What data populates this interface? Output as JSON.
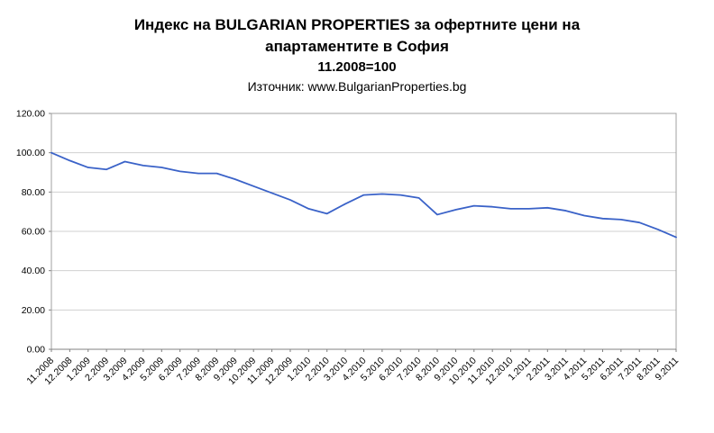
{
  "chart_data": {
    "type": "line",
    "title_line1": "Индекс на BULGARIAN PROPERTIES за офертните цени на",
    "title_line2": "апартаментите в София",
    "subtitle": "11.2008=100",
    "source": "Източник: www.BulgarianProperties.bg",
    "categories": [
      "11.2008",
      "12.2008",
      "1.2009",
      "2.2009",
      "3.2009",
      "4.2009",
      "5.2009",
      "6.2009",
      "7.2009",
      "8.2009",
      "9.2009",
      "10.2009",
      "11.2009",
      "12.2009",
      "1.2010",
      "2.2010",
      "3.2010",
      "4.2010",
      "5.2010",
      "6.2010",
      "7.2010",
      "8.2010",
      "9.2010",
      "10.2010",
      "11.2010",
      "12.2010",
      "1.2011",
      "2.2011",
      "3.2011",
      "4.2011",
      "5.2011",
      "6.2011",
      "7.2011",
      "8.2011",
      "9.2011"
    ],
    "values": [
      100,
      96,
      92.5,
      91.5,
      95.5,
      93.5,
      92.5,
      90.5,
      89.5,
      89.5,
      86.5,
      83,
      79.5,
      76,
      71.5,
      69,
      74,
      78.5,
      79,
      78.5,
      77,
      68.5,
      71,
      73,
      72.5,
      71.5,
      71.5,
      72,
      70.5,
      68,
      66.5,
      66,
      64.5,
      61,
      57
    ],
    "ylim": [
      0,
      120
    ],
    "ytick_step": 20,
    "ytick_labels": [
      "0.00",
      "20.00",
      "40.00",
      "60.00",
      "80.00",
      "100.00",
      "120.00"
    ],
    "grid": true,
    "legend": "none",
    "xlabel": "",
    "ylabel": "",
    "line_color": "#3A62C8",
    "gridline_color": "#D0D0D0",
    "plot_border_color": "#A0A0A0",
    "axis_color": "#808080",
    "label_color": "#000000"
  }
}
